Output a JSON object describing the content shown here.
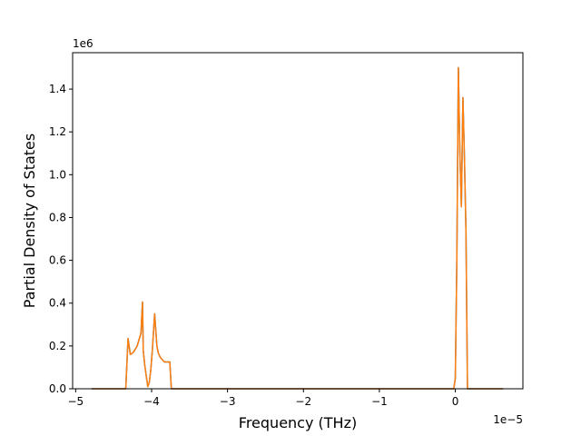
{
  "chart_data": {
    "type": "line",
    "title": "",
    "xlabel": "Frequency (THz)",
    "ylabel": "Partial Density of States",
    "x_offset_label": "1e−5",
    "y_offset_label": "1e6",
    "x_scale": 1e-05,
    "y_scale": 1000000.0,
    "xlim": [
      -5.04e-05,
      8.9e-06
    ],
    "ylim": [
      0,
      1570000.0
    ],
    "x_ticks": [
      -5e-05,
      -4e-05,
      -3e-05,
      -2e-05,
      -1e-05,
      0
    ],
    "x_tick_labels": [
      "−5",
      "−4",
      "−3",
      "−2",
      "−1",
      "0"
    ],
    "y_ticks": [
      0,
      200000,
      400000,
      600000,
      800000,
      1000000,
      1200000,
      1400000
    ],
    "y_tick_labels": [
      "0.0",
      "0.2",
      "0.4",
      "0.6",
      "0.8",
      "1.0",
      "1.2",
      "1.4"
    ],
    "grid": false,
    "series": [
      {
        "color": "#1f77b4",
        "x": [
          -4.79e-05,
          -4.36e-05,
          -4.34e-05,
          -4.32e-05,
          -4.31e-05,
          -4.28e-05,
          -4.24e-05,
          -4.19e-05,
          -4.14e-05,
          -4.12e-05,
          -4.11e-05,
          -4.09e-05,
          -4.07e-05,
          -4.05e-05,
          -4.03e-05,
          -4.01e-05,
          -3.99e-05,
          -3.96e-05,
          -3.93e-05,
          -3.91e-05,
          -3.89e-05,
          -3.87e-05,
          -3.83e-05,
          -3.76e-05,
          -3.74e-05,
          -3.73e-05,
          -2e-07,
          0.0,
          2e-07,
          4e-07,
          6e-07,
          8e-07,
          1e-06,
          1.2e-06,
          1.4e-06,
          1.6e-06,
          1.8e-06,
          2e-06,
          2.2e-06,
          6.3e-06
        ],
        "y": [
          0,
          0,
          0,
          160000,
          235000,
          160000,
          170000,
          200000,
          260000,
          405000,
          180000,
          110000,
          60000,
          10000,
          30000,
          90000,
          180000,
          350000,
          200000,
          165000,
          150000,
          140000,
          125000,
          125000,
          0,
          0,
          0,
          50000,
          600000,
          1500000,
          1100000,
          850000,
          1360000,
          1080000,
          740000,
          0,
          0,
          0,
          0,
          0
        ]
      },
      {
        "color": "#ff7f0e",
        "x": [
          -4.79e-05,
          -4.36e-05,
          -4.34e-05,
          -4.32e-05,
          -4.31e-05,
          -4.28e-05,
          -4.24e-05,
          -4.19e-05,
          -4.14e-05,
          -4.12e-05,
          -4.11e-05,
          -4.09e-05,
          -4.07e-05,
          -4.05e-05,
          -4.03e-05,
          -4.01e-05,
          -3.99e-05,
          -3.96e-05,
          -3.93e-05,
          -3.91e-05,
          -3.89e-05,
          -3.87e-05,
          -3.83e-05,
          -3.76e-05,
          -3.74e-05,
          -3.73e-05,
          -2e-07,
          0.0,
          2e-07,
          4e-07,
          6e-07,
          8e-07,
          1e-06,
          1.2e-06,
          1.4e-06,
          1.6e-06,
          1.8e-06,
          2e-06,
          2.2e-06,
          6.3e-06
        ],
        "y": [
          0,
          0,
          0,
          160000,
          235000,
          160000,
          170000,
          200000,
          260000,
          405000,
          180000,
          110000,
          60000,
          10000,
          30000,
          90000,
          180000,
          350000,
          200000,
          165000,
          150000,
          140000,
          125000,
          125000,
          0,
          0,
          0,
          50000,
          600000,
          1500000,
          1100000,
          850000,
          1360000,
          1080000,
          740000,
          0,
          0,
          0,
          0,
          0
        ]
      }
    ]
  }
}
